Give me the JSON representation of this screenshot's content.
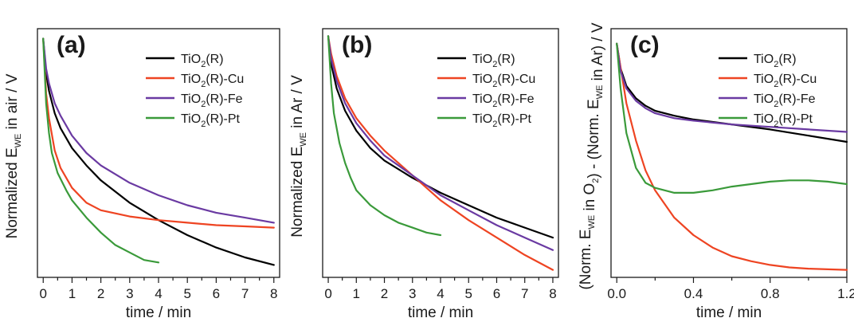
{
  "figure": {
    "panels": [
      {
        "label": "(a)",
        "ylabel": {
          "prefix": "Normalized E",
          "sub": "WE",
          "suffix": " in air / V"
        },
        "xlabel": "time / min"
      },
      {
        "label": "(b)",
        "ylabel": {
          "prefix": "Normalized E",
          "sub": "WE",
          "suffix": " in Ar / V"
        },
        "xlabel": "time / min"
      },
      {
        "label": "(c)",
        "ylabel": {
          "parts": [
            {
              "t": "(Norm. E"
            },
            {
              "t": "WE",
              "sub": true
            },
            {
              "t": " in O"
            },
            {
              "t": "2",
              "sub": true
            },
            {
              "t": ") - (Norm. E"
            },
            {
              "t": "WE",
              "sub": true
            },
            {
              "t": " in Ar) / V"
            }
          ]
        },
        "xlabel": "time / min"
      }
    ]
  },
  "chart_data": [
    {
      "type": "line",
      "panel": "(a)",
      "xlabel": "time / min",
      "ylabel": "Normalized E_WE in air / V",
      "xlim": [
        -0.2,
        8.2
      ],
      "ylim": [
        0,
        1.0
      ],
      "xticks": [
        "0",
        "1",
        "2",
        "3",
        "4",
        "5",
        "6",
        "7",
        "8"
      ],
      "yticks_labeled": false,
      "legend": "top-right",
      "series": [
        {
          "name": "TiO2(R)",
          "color": "#000000",
          "x": [
            0,
            0.1,
            0.2,
            0.4,
            0.6,
            1,
            1.5,
            2,
            3,
            4,
            5,
            6,
            7,
            8
          ],
          "y": [
            0.96,
            0.82,
            0.75,
            0.66,
            0.6,
            0.52,
            0.45,
            0.39,
            0.3,
            0.23,
            0.17,
            0.12,
            0.08,
            0.05
          ]
        },
        {
          "name": "TiO2(R)-Cu",
          "color": "#ee4422",
          "x": [
            0,
            0.1,
            0.2,
            0.4,
            0.6,
            1,
            1.5,
            2,
            3,
            4,
            5,
            6,
            7,
            8
          ],
          "y": [
            0.96,
            0.74,
            0.64,
            0.51,
            0.44,
            0.36,
            0.3,
            0.27,
            0.245,
            0.23,
            0.22,
            0.21,
            0.205,
            0.2
          ]
        },
        {
          "name": "TiO2(R)-Fe",
          "color": "#6a3aa2",
          "x": [
            0,
            0.1,
            0.2,
            0.4,
            0.6,
            1,
            1.5,
            2,
            3,
            4,
            5,
            6,
            7,
            8
          ],
          "y": [
            0.96,
            0.84,
            0.78,
            0.7,
            0.65,
            0.57,
            0.5,
            0.45,
            0.38,
            0.33,
            0.29,
            0.26,
            0.24,
            0.22
          ]
        },
        {
          "name": "TiO2(R)-Pt",
          "color": "#3a9a3a",
          "x": [
            0,
            0.1,
            0.2,
            0.3,
            0.5,
            0.8,
            1,
            1.5,
            2,
            2.5,
            3,
            3.5,
            4
          ],
          "y": [
            0.96,
            0.7,
            0.58,
            0.5,
            0.42,
            0.35,
            0.31,
            0.24,
            0.18,
            0.13,
            0.1,
            0.07,
            0.06
          ]
        }
      ]
    },
    {
      "type": "line",
      "panel": "(b)",
      "xlabel": "time / min",
      "ylabel": "Normalized E_WE in Ar / V",
      "xlim": [
        -0.2,
        8.2
      ],
      "ylim": [
        0,
        1.0
      ],
      "xticks": [
        "0",
        "1",
        "2",
        "3",
        "4",
        "5",
        "6",
        "7",
        "8"
      ],
      "yticks_labeled": false,
      "legend": "top-right",
      "series": [
        {
          "name": "TiO2(R)",
          "color": "#000000",
          "x": [
            0,
            0.1,
            0.3,
            0.6,
            1,
            1.5,
            2,
            3,
            4,
            5,
            6,
            7,
            8
          ],
          "y": [
            0.97,
            0.86,
            0.76,
            0.67,
            0.59,
            0.52,
            0.47,
            0.4,
            0.34,
            0.29,
            0.24,
            0.2,
            0.16
          ]
        },
        {
          "name": "TiO2(R)-Cu",
          "color": "#ee4422",
          "x": [
            0,
            0.1,
            0.3,
            0.6,
            1,
            1.5,
            2,
            3,
            4,
            5,
            6,
            7,
            8
          ],
          "y": [
            0.97,
            0.9,
            0.81,
            0.72,
            0.64,
            0.57,
            0.51,
            0.41,
            0.31,
            0.23,
            0.16,
            0.09,
            0.03
          ]
        },
        {
          "name": "TiO2(R)-Fe",
          "color": "#6a3aa2",
          "x": [
            0,
            0.1,
            0.3,
            0.6,
            1,
            1.5,
            2,
            3,
            4,
            5,
            6,
            7,
            8
          ],
          "y": [
            0.97,
            0.88,
            0.79,
            0.7,
            0.62,
            0.55,
            0.49,
            0.41,
            0.33,
            0.27,
            0.21,
            0.16,
            0.11
          ]
        },
        {
          "name": "TiO2(R)-Pt",
          "color": "#3a9a3a",
          "x": [
            0,
            0.1,
            0.2,
            0.4,
            0.6,
            0.8,
            1,
            1.5,
            2,
            2.5,
            3,
            3.5,
            4
          ],
          "y": [
            0.97,
            0.78,
            0.66,
            0.54,
            0.46,
            0.4,
            0.35,
            0.29,
            0.25,
            0.22,
            0.2,
            0.18,
            0.17
          ]
        }
      ]
    },
    {
      "type": "line",
      "panel": "(c)",
      "xlabel": "time / min",
      "ylabel": "(Norm. E_WE in O2) - (Norm. E_WE in Ar) / V",
      "xlim": [
        -0.03,
        1.2
      ],
      "ylim": [
        0,
        1.0
      ],
      "xticks": [
        "0.0",
        "0.4",
        "0.8",
        "1.2"
      ],
      "yticks_labeled": false,
      "legend": "top-right",
      "series": [
        {
          "name": "TiO2(R)",
          "color": "#000000",
          "x": [
            0,
            0.02,
            0.05,
            0.1,
            0.15,
            0.2,
            0.3,
            0.4,
            0.6,
            0.8,
            1.0,
            1.2
          ],
          "y": [
            0.94,
            0.84,
            0.77,
            0.72,
            0.69,
            0.67,
            0.65,
            0.635,
            0.615,
            0.595,
            0.57,
            0.545
          ]
        },
        {
          "name": "TiO2(R)-Cu",
          "color": "#ee4422",
          "x": [
            0,
            0.05,
            0.1,
            0.15,
            0.2,
            0.3,
            0.4,
            0.5,
            0.6,
            0.7,
            0.8,
            0.9,
            1.0,
            1.2
          ],
          "y": [
            0.94,
            0.7,
            0.55,
            0.43,
            0.35,
            0.24,
            0.17,
            0.12,
            0.085,
            0.065,
            0.05,
            0.04,
            0.035,
            0.03
          ]
        },
        {
          "name": "TiO2(R)-Fe",
          "color": "#6a3aa2",
          "x": [
            0,
            0.02,
            0.05,
            0.1,
            0.15,
            0.2,
            0.3,
            0.4,
            0.6,
            0.8,
            1.0,
            1.2
          ],
          "y": [
            0.94,
            0.83,
            0.76,
            0.71,
            0.68,
            0.66,
            0.64,
            0.63,
            0.615,
            0.605,
            0.595,
            0.585
          ]
        },
        {
          "name": "TiO2(R)-Pt",
          "color": "#3a9a3a",
          "x": [
            0,
            0.02,
            0.05,
            0.1,
            0.15,
            0.2,
            0.3,
            0.4,
            0.5,
            0.6,
            0.7,
            0.8,
            0.9,
            1.0,
            1.1,
            1.2
          ],
          "y": [
            0.94,
            0.76,
            0.58,
            0.44,
            0.38,
            0.36,
            0.34,
            0.34,
            0.35,
            0.365,
            0.375,
            0.385,
            0.39,
            0.39,
            0.385,
            0.375
          ]
        }
      ]
    }
  ]
}
